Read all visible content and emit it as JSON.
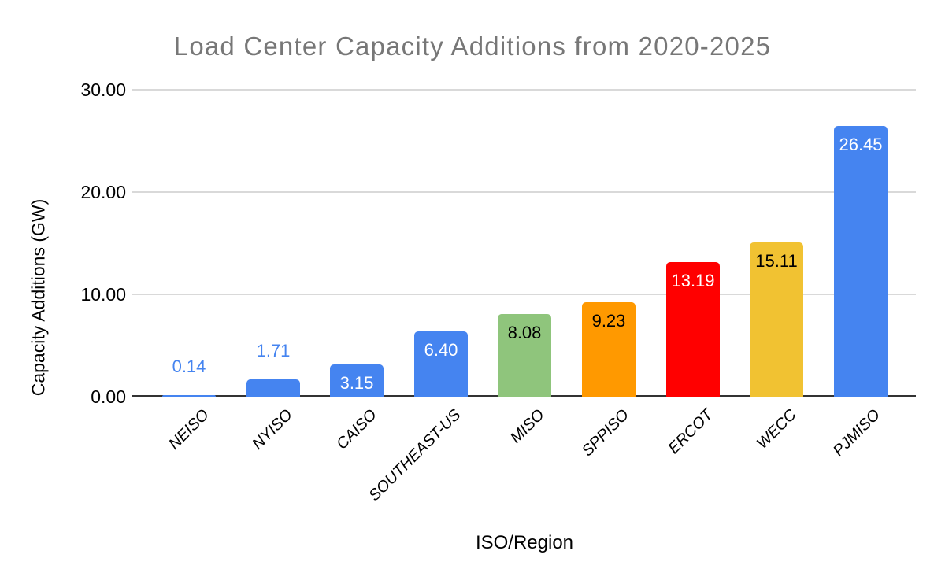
{
  "chart_data": {
    "type": "bar",
    "title": "Load Center Capacity Additions from 2020-2025",
    "xlabel": "ISO/Region",
    "ylabel": "Capacity Additions (GW)",
    "categories": [
      "NEISO",
      "NYISO",
      "CAISO",
      "SOUTHEAST-US",
      "MISO",
      "SPPISO",
      "ERCOT",
      "WECC",
      "PJMISO"
    ],
    "values": [
      0.14,
      1.71,
      3.15,
      6.4,
      8.08,
      9.23,
      13.19,
      15.11,
      26.45
    ],
    "data_labels": [
      "0.14",
      "1.71",
      "3.15",
      "6.40",
      "8.08",
      "9.23",
      "13.19",
      "15.11",
      "26.45"
    ],
    "bar_colors": [
      "#4584F0",
      "#4584F0",
      "#4584F0",
      "#4584F0",
      "#8FC57C",
      "#FF9900",
      "#FF0000",
      "#F1C232",
      "#4584F0"
    ],
    "label_colors": [
      "#4584F0",
      "#4584F0",
      "#FFFFFF",
      "#FFFFFF",
      "#000000",
      "#000000",
      "#FFFFFF",
      "#000000",
      "#FFFFFF"
    ],
    "label_placement": [
      "above",
      "above",
      "inside",
      "inside",
      "inside",
      "inside",
      "inside",
      "inside",
      "inside"
    ],
    "y_ticks": [
      {
        "value": 0,
        "label": "0.00"
      },
      {
        "value": 10,
        "label": "10.00"
      },
      {
        "value": 20,
        "label": "20.00"
      },
      {
        "value": 30,
        "label": "30.00"
      }
    ],
    "ylim": [
      0,
      30
    ],
    "grid": true,
    "legend": "none",
    "colors": {
      "title_text": "#777777",
      "axis_text": "#000000",
      "gridline": "#D9D9D9",
      "baseline": "#333333",
      "background": "#FFFFFF"
    }
  }
}
